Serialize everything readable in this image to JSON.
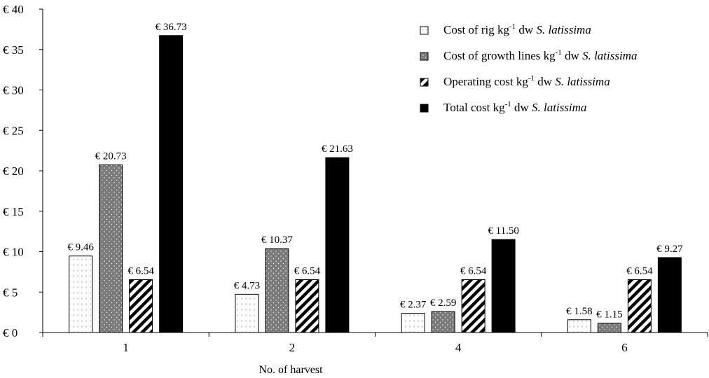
{
  "chart_data": {
    "type": "bar",
    "categories": [
      "1",
      "2",
      "4",
      "6"
    ],
    "xlabel": "No. of harvest",
    "ylabel": "",
    "ylim": [
      0,
      40
    ],
    "yticks": [
      0,
      5,
      10,
      15,
      20,
      25,
      30,
      35,
      40
    ],
    "ytick_prefix": "€ ",
    "data_label_prefix": "€ ",
    "grid": false,
    "legend_position": "top-right",
    "series": [
      {
        "name": "Cost of rig kg-1 dw S. latissima",
        "legend": {
          "pre": "Cost of rig kg",
          "sup": "-1",
          "post": " dw ",
          "italic": "S. latissima"
        },
        "pattern": "white-dashes",
        "values": [
          9.46,
          4.73,
          2.37,
          1.58
        ],
        "labels": [
          "9.46",
          "4.73",
          "2.37",
          "1.58"
        ]
      },
      {
        "name": "Cost of growth lines kg-1 dw S. latissima",
        "legend": {
          "pre": "Cost of growth lines kg",
          "sup": "-1",
          "post": " dw ",
          "italic": "S. latissima"
        },
        "pattern": "gray-dots",
        "values": [
          20.73,
          10.37,
          2.59,
          1.15
        ],
        "labels": [
          "20.73",
          "10.37",
          "2.59",
          "1.15"
        ]
      },
      {
        "name": "Operating cost kg-1 dw S. latissima",
        "legend": {
          "pre": "Operating  cost kg",
          "sup": "-1",
          "post": " dw ",
          "italic": "S. latissima"
        },
        "pattern": "diagonal-stripes",
        "values": [
          6.54,
          6.54,
          6.54,
          6.54
        ],
        "labels": [
          "6.54",
          "6.54",
          "6.54",
          "6.54"
        ]
      },
      {
        "name": "Total cost kg-1 dw S. latissima",
        "legend": {
          "pre": "Total cost kg",
          "sup": "-1",
          "post": " dw ",
          "italic": "S. latissima"
        },
        "pattern": "solid-black",
        "values": [
          36.73,
          21.63,
          11.5,
          9.27
        ],
        "labels": [
          "36.73",
          "21.63",
          "11.50",
          "9.27"
        ]
      }
    ]
  }
}
